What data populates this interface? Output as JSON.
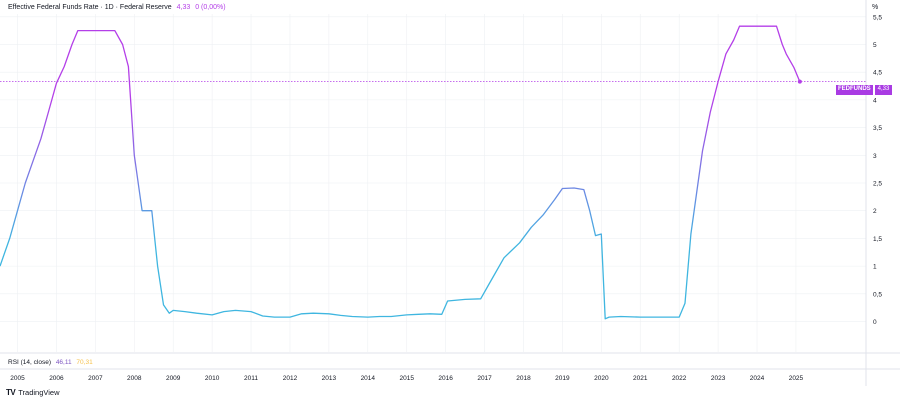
{
  "header": {
    "title": "Effective Federal Funds Rate · 1D · Federal Reserve",
    "last_value": "4,33",
    "change": "0 (0,00%)"
  },
  "axis": {
    "unit": "%"
  },
  "rsi": {
    "label": "RSI (14, close)",
    "value1": "46,11",
    "value2": "70,31"
  },
  "price_tag": {
    "symbol": "FEDFUNDS",
    "value": "4,33"
  },
  "brand": {
    "logo": "TV",
    "name": "TradingView"
  },
  "colors": {
    "line_start": "#3fb6e0",
    "line_end": "#b43fe8",
    "price_line": "#b43fe8",
    "grid": "#eef0f3"
  },
  "chart_data": {
    "type": "line",
    "title": "Effective Federal Funds Rate",
    "xlim": [
      2004.55,
      2026.8
    ],
    "ylim": [
      -0.55,
      5.55
    ],
    "y_ticks": [
      0,
      0.5,
      1,
      1.5,
      2,
      2.5,
      3,
      3.5,
      4,
      4.5,
      5,
      5.5
    ],
    "y_tick_labels": [
      "0",
      "0,5",
      "1",
      "1,5",
      "2",
      "2,5",
      "3",
      "3,5",
      "4",
      "4,5",
      "5",
      "5,5"
    ],
    "x_ticks": [
      2005,
      2006,
      2007,
      2008,
      2009,
      2010,
      2011,
      2012,
      2013,
      2014,
      2015,
      2016,
      2017,
      2018,
      2019,
      2020,
      2021,
      2022,
      2023,
      2024,
      2025
    ],
    "x_tick_labels": [
      "2005",
      "2006",
      "2007",
      "2008",
      "2009",
      "2010",
      "2011",
      "2012",
      "2013",
      "2014",
      "2015",
      "2016",
      "2017",
      "2018",
      "2019",
      "2020",
      "2021",
      "2022",
      "2023",
      "2024",
      "2025"
    ],
    "current_value": 4.33,
    "series": [
      {
        "x": [
          2004.55,
          2004.8,
          2005.0,
          2005.2,
          2005.4,
          2005.6,
          2005.8,
          2006.0,
          2006.2,
          2006.4,
          2006.55,
          2007.0,
          2007.5,
          2007.7,
          2007.85,
          2008.0,
          2008.2,
          2008.45,
          2008.6,
          2008.75,
          2008.9,
          2009.0,
          2009.3,
          2009.6,
          2010.0,
          2010.3,
          2010.6,
          2011.0,
          2011.3,
          2011.6,
          2012.0,
          2012.3,
          2012.6,
          2013.0,
          2013.3,
          2013.6,
          2014.0,
          2014.3,
          2014.6,
          2015.0,
          2015.3,
          2015.6,
          2015.9,
          2016.05,
          2016.5,
          2016.9,
          2017.1,
          2017.5,
          2017.9,
          2018.2,
          2018.5,
          2018.8,
          2019.0,
          2019.3,
          2019.55,
          2019.7,
          2019.85,
          2020.0,
          2020.1,
          2020.2,
          2020.5,
          2021.0,
          2021.5,
          2022.0,
          2022.15,
          2022.3,
          2022.45,
          2022.6,
          2022.8,
          2023.0,
          2023.2,
          2023.4,
          2023.55,
          2024.0,
          2024.5,
          2024.65,
          2024.75,
          2024.95,
          2025.1
        ],
        "y": [
          1.0,
          1.5,
          2.0,
          2.5,
          2.9,
          3.3,
          3.8,
          4.3,
          4.6,
          5.0,
          5.25,
          5.25,
          5.25,
          5.0,
          4.6,
          3.0,
          2.0,
          2.0,
          1.0,
          0.3,
          0.15,
          0.2,
          0.18,
          0.15,
          0.12,
          0.18,
          0.2,
          0.18,
          0.1,
          0.08,
          0.08,
          0.14,
          0.15,
          0.14,
          0.11,
          0.09,
          0.08,
          0.09,
          0.09,
          0.12,
          0.13,
          0.14,
          0.13,
          0.37,
          0.4,
          0.41,
          0.66,
          1.15,
          1.42,
          1.7,
          1.92,
          2.2,
          2.4,
          2.41,
          2.38,
          2.0,
          1.55,
          1.58,
          0.05,
          0.08,
          0.09,
          0.08,
          0.08,
          0.08,
          0.33,
          1.58,
          2.33,
          3.08,
          3.78,
          4.33,
          4.83,
          5.08,
          5.33,
          5.33,
          5.33,
          5.0,
          4.83,
          4.58,
          4.33
        ],
        "range": [
          4.33,
          4.33
        ]
      }
    ]
  }
}
